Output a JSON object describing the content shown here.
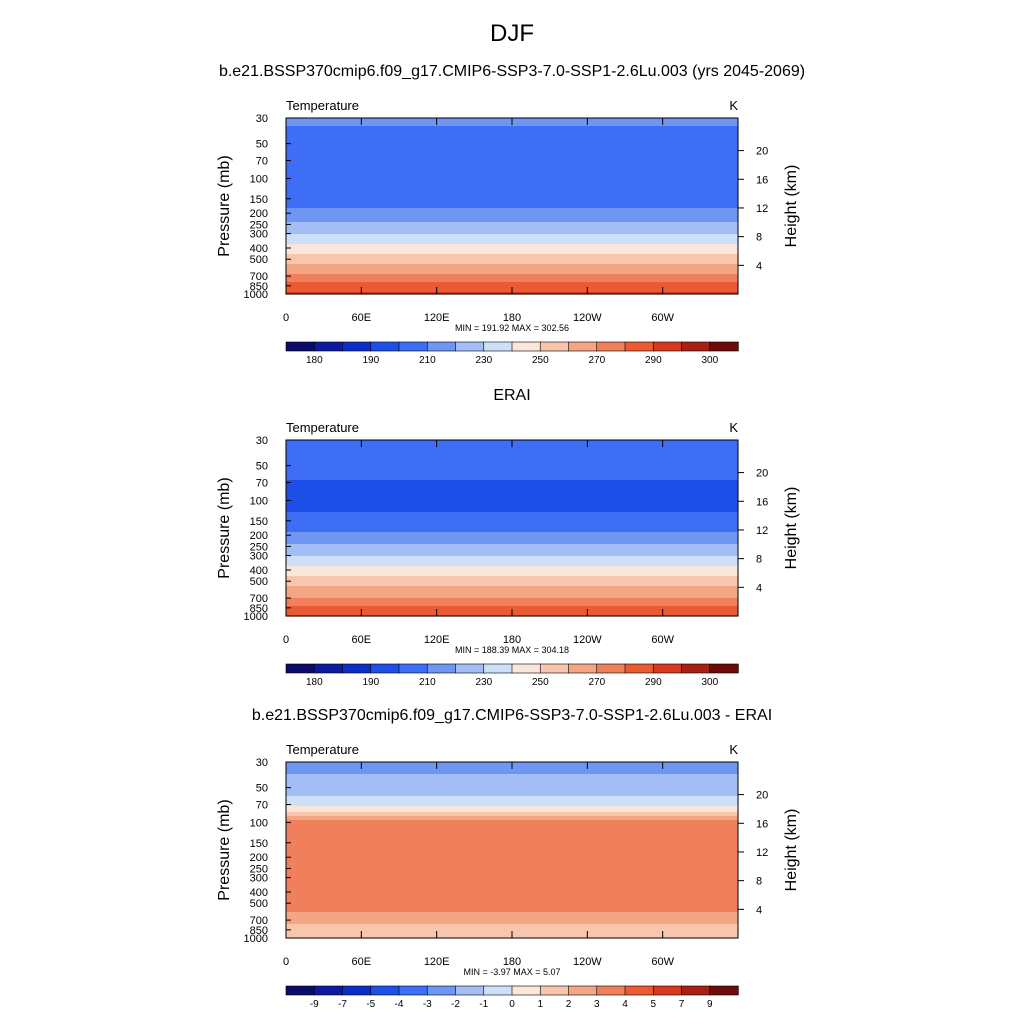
{
  "figure": {
    "season": "DJF",
    "colors": {
      "abs": [
        "#0b0b6b",
        "#0d1aa0",
        "#0a2fc9",
        "#1e4fe8",
        "#3d6ef5",
        "#6f96f2",
        "#a3bef5",
        "#cde0f8",
        "#fae6da",
        "#f7c6ac",
        "#f4a583",
        "#f0805b",
        "#ea5a33",
        "#d6391e",
        "#a81f16",
        "#6e0b08"
      ],
      "diff": [
        "#0b0b6b",
        "#0d1aa0",
        "#0a2fc9",
        "#1e4fe8",
        "#3d6ef5",
        "#6f96f2",
        "#a3bef5",
        "#cde0f8",
        "#fae6da",
        "#f7c6ac",
        "#f4a583",
        "#f0805b",
        "#ea5a33",
        "#d6391e",
        "#a81f16",
        "#6e0b08"
      ]
    }
  },
  "chart_data": [
    {
      "type": "heatmap",
      "title": "b.e21.BSSP370cmip6.f09_g17.CMIP6-SSP3-7.0-SSP1-2.6Lu.003 (yrs 2045-2069)",
      "variable": "Temperature",
      "units": "K",
      "ylabel": "Pressure (mb)",
      "ylabel_right": "Height (km)",
      "xticks": [
        "0",
        "60E",
        "120E",
        "180",
        "120W",
        "60W"
      ],
      "yticks": [
        "30",
        "50",
        "70",
        "100",
        "150",
        "200",
        "250",
        "300",
        "400",
        "500",
        "700",
        "850",
        "1000"
      ],
      "height_ticks": [
        "20",
        "16",
        "12",
        "8",
        "4"
      ],
      "stats": "MIN = 191.92  MAX = 302.56",
      "colorbar_labels": [
        "180",
        "190",
        "210",
        "230",
        "250",
        "270",
        "290",
        "300"
      ],
      "colorbar_levels": [
        175,
        180,
        185,
        190,
        200,
        210,
        220,
        230,
        240,
        250,
        260,
        270,
        280,
        290,
        295,
        300
      ],
      "profile": {
        "pressure": [
          30,
          50,
          70,
          100,
          150,
          200,
          250,
          300,
          400,
          500,
          700,
          850,
          1000
        ],
        "temperature": [
          212,
          206,
          202,
          200,
          205,
          213,
          222,
          230,
          245,
          256,
          273,
          284,
          292
        ]
      }
    },
    {
      "type": "heatmap",
      "title": "ERAI",
      "variable": "Temperature",
      "units": "K",
      "ylabel": "Pressure (mb)",
      "ylabel_right": "Height (km)",
      "xticks": [
        "0",
        "60E",
        "120E",
        "180",
        "120W",
        "60W"
      ],
      "yticks": [
        "30",
        "50",
        "70",
        "100",
        "150",
        "200",
        "250",
        "300",
        "400",
        "500",
        "700",
        "850",
        "1000"
      ],
      "height_ticks": [
        "20",
        "16",
        "12",
        "8",
        "4"
      ],
      "stats": "MIN = 188.39  MAX = 304.18",
      "colorbar_labels": [
        "180",
        "190",
        "210",
        "230",
        "250",
        "270",
        "290",
        "300"
      ],
      "colorbar_levels": [
        175,
        180,
        185,
        190,
        200,
        210,
        220,
        230,
        240,
        250,
        260,
        270,
        280,
        290,
        295,
        300
      ],
      "profile": {
        "pressure": [
          30,
          50,
          70,
          100,
          150,
          200,
          250,
          300,
          400,
          500,
          700,
          850,
          1000
        ],
        "temperature": [
          210,
          204,
          199,
          196,
          203,
          212,
          222,
          230,
          244,
          255,
          271,
          282,
          290
        ]
      }
    },
    {
      "type": "heatmap",
      "title": "b.e21.BSSP370cmip6.f09_g17.CMIP6-SSP3-7.0-SSP1-2.6Lu.003 - ERAI",
      "variable": "Temperature",
      "units": "K",
      "ylabel": "Pressure (mb)",
      "ylabel_right": "Height (km)",
      "xticks": [
        "0",
        "60E",
        "120E",
        "180",
        "120W",
        "60W"
      ],
      "yticks": [
        "30",
        "50",
        "70",
        "100",
        "150",
        "200",
        "250",
        "300",
        "400",
        "500",
        "700",
        "850",
        "1000"
      ],
      "height_ticks": [
        "20",
        "16",
        "12",
        "8",
        "4"
      ],
      "stats": "MIN =  -3.97  MAX =   5.07",
      "colorbar_labels": [
        "-9",
        "-7",
        "-5",
        "-4",
        "-3",
        "-2",
        "-1",
        "0",
        "1",
        "2",
        "3",
        "4",
        "5",
        "7",
        "9"
      ],
      "colorbar_levels": [
        -10,
        -9,
        -7,
        -5,
        -4,
        -3,
        -2,
        -1,
        0,
        1,
        2,
        3,
        4,
        5,
        7,
        9
      ],
      "profile": {
        "pressure": [
          30,
          50,
          70,
          85,
          100,
          150,
          200,
          250,
          300,
          400,
          500,
          700,
          850,
          1000
        ],
        "temperature": [
          -2.5,
          -1.5,
          -0.5,
          1.5,
          3.5,
          3.5,
          3.5,
          3.5,
          3.5,
          3.5,
          3.5,
          2.5,
          1.5,
          1.5
        ]
      }
    }
  ]
}
